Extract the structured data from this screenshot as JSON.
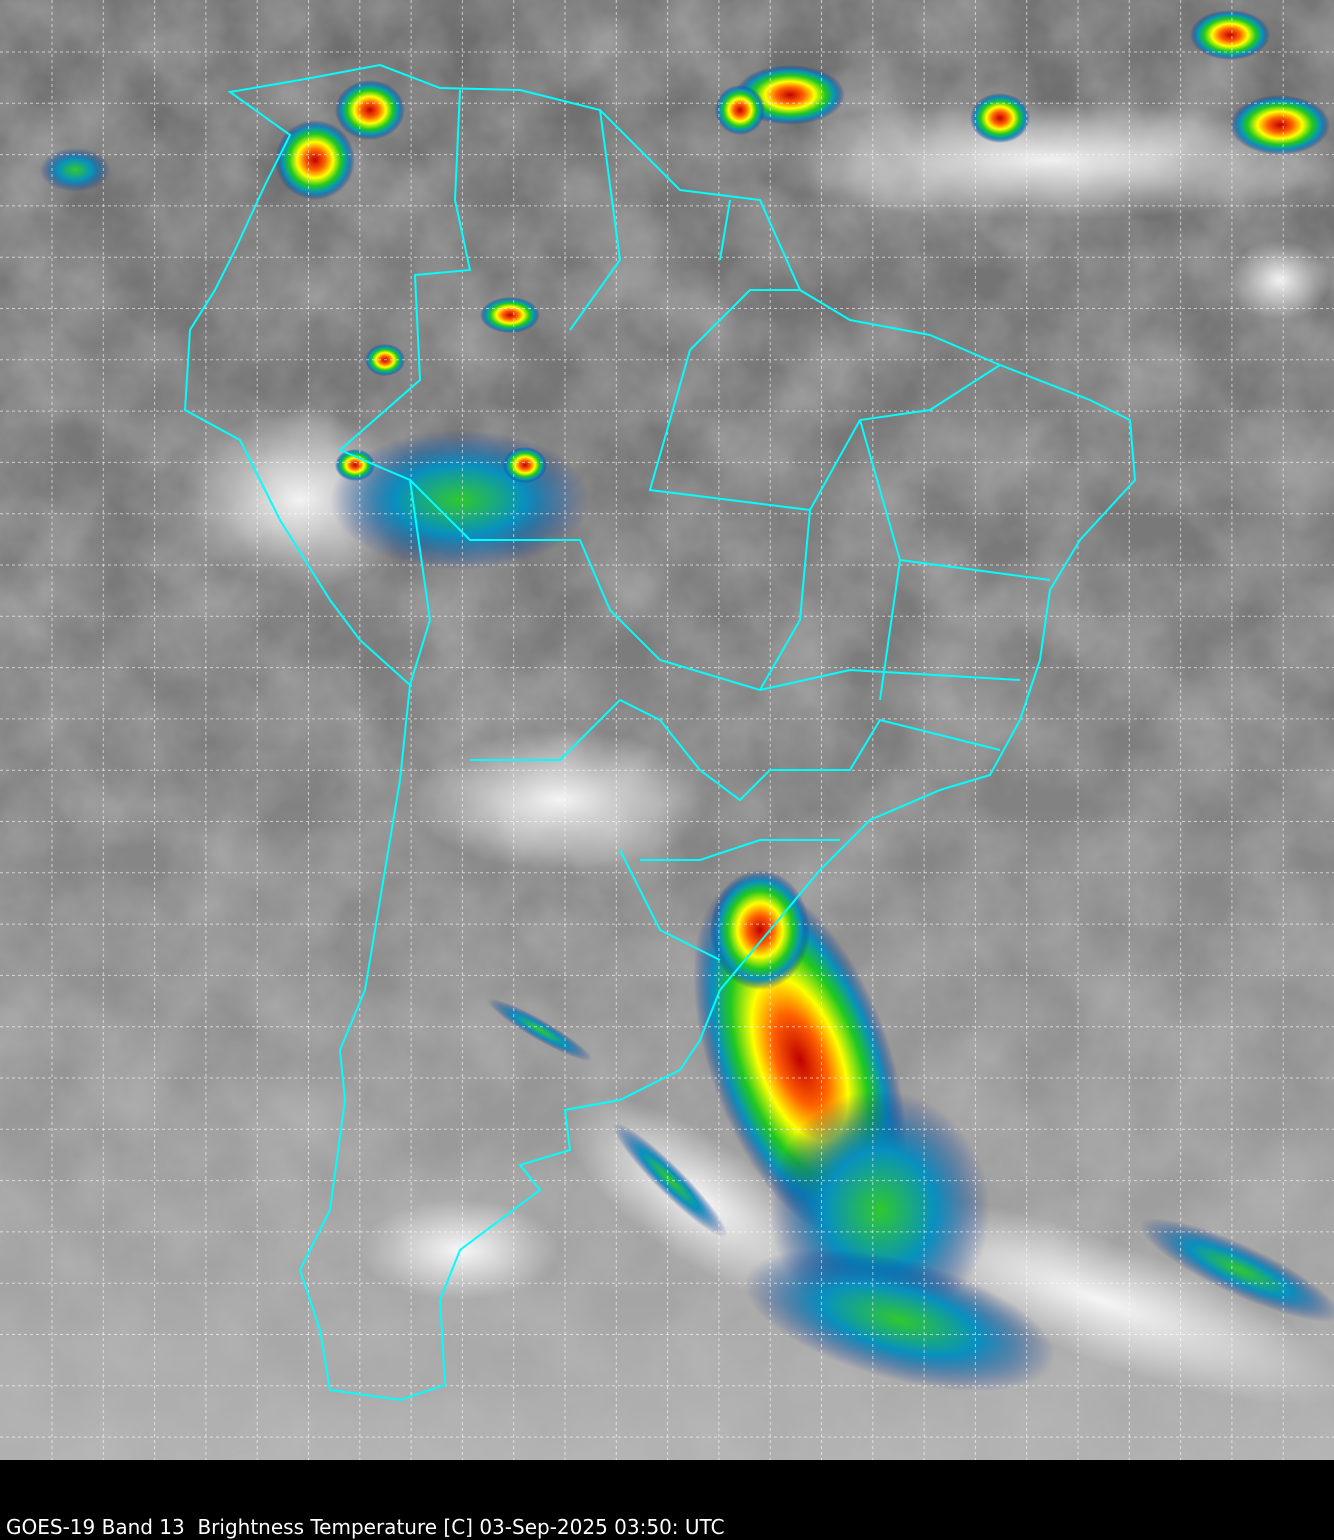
{
  "caption": "GOES-19 Band 13  Brightness Temperature [C] 03-Sep-2025 03:50: UTC",
  "colors": {
    "background_gray": "#7a7a7a",
    "borders": "#00ffff",
    "grid": "#ffffff",
    "cold_cloud_scale": [
      "#0a2a8a",
      "#0aa0c8",
      "#1ec81e",
      "#ffff00",
      "#ff8000",
      "#e00000",
      "#000000"
    ]
  }
}
